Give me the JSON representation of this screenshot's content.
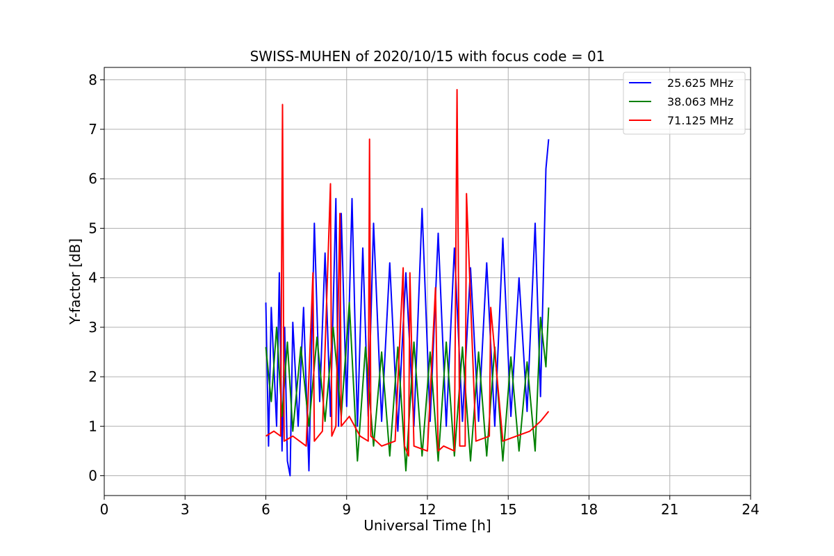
{
  "chart_data": {
    "type": "line",
    "title": "SWISS-MUHEN of 2020/10/15 with focus code = 01",
    "xlabel": "Universal Time [h]",
    "ylabel": "Y-factor [dB]",
    "xlim": [
      0,
      24
    ],
    "ylim": [
      -0.4,
      8.25
    ],
    "xticks": [
      0,
      3,
      6,
      9,
      12,
      15,
      18,
      21,
      24
    ],
    "yticks": [
      0,
      1,
      2,
      3,
      4,
      5,
      6,
      7,
      8
    ],
    "grid": true,
    "legend_position": "top-right",
    "series": [
      {
        "name": "25.625 MHz",
        "color": "#0000ff",
        "x": [
          6.0,
          6.1,
          6.2,
          6.4,
          6.5,
          6.6,
          6.7,
          6.8,
          6.9,
          7.0,
          7.2,
          7.4,
          7.6,
          7.8,
          8.0,
          8.2,
          8.4,
          8.6,
          8.7,
          8.8,
          9.0,
          9.2,
          9.4,
          9.6,
          9.8,
          10.0,
          10.3,
          10.6,
          10.9,
          11.2,
          11.5,
          11.8,
          12.1,
          12.4,
          12.7,
          13.0,
          13.3,
          13.6,
          13.9,
          14.2,
          14.5,
          14.8,
          15.1,
          15.4,
          15.7,
          16.0,
          16.2,
          16.4,
          16.5
        ],
        "y": [
          3.5,
          0.6,
          3.4,
          1.0,
          4.1,
          0.5,
          3.0,
          0.3,
          0.0,
          3.1,
          1.0,
          3.4,
          0.1,
          5.1,
          1.5,
          4.5,
          1.2,
          5.6,
          1.0,
          5.3,
          1.4,
          5.6,
          1.0,
          4.6,
          1.2,
          5.1,
          1.1,
          4.3,
          0.9,
          4.1,
          1.0,
          5.4,
          1.1,
          4.9,
          1.0,
          4.6,
          1.1,
          4.2,
          1.1,
          4.3,
          1.0,
          4.8,
          1.2,
          4.0,
          1.3,
          5.1,
          1.6,
          6.2,
          6.8
        ]
      },
      {
        "name": "38.063 MHz",
        "color": "#008000",
        "x": [
          6.0,
          6.2,
          6.4,
          6.6,
          6.8,
          7.0,
          7.3,
          7.6,
          7.9,
          8.2,
          8.5,
          8.8,
          9.1,
          9.4,
          9.7,
          10.0,
          10.3,
          10.6,
          10.9,
          11.2,
          11.5,
          11.8,
          12.1,
          12.4,
          12.7,
          13.0,
          13.3,
          13.6,
          13.9,
          14.2,
          14.5,
          14.8,
          15.1,
          15.4,
          15.7,
          16.0,
          16.2,
          16.4,
          16.5
        ],
        "y": [
          2.6,
          1.5,
          3.0,
          1.2,
          2.7,
          0.9,
          2.6,
          1.0,
          2.8,
          1.1,
          3.0,
          1.2,
          3.5,
          0.3,
          2.6,
          0.6,
          2.5,
          0.4,
          2.6,
          0.1,
          2.7,
          0.4,
          2.5,
          0.3,
          2.7,
          0.4,
          2.6,
          0.3,
          2.5,
          0.4,
          2.6,
          0.3,
          2.4,
          0.5,
          2.3,
          0.5,
          3.2,
          2.2,
          3.4
        ]
      },
      {
        "name": "71.125 MHz",
        "color": "#ff0000",
        "x": [
          6.0,
          6.3,
          6.55,
          6.62,
          6.68,
          7.0,
          7.5,
          7.75,
          7.8,
          8.1,
          8.4,
          8.45,
          8.6,
          8.75,
          8.8,
          9.1,
          9.5,
          9.8,
          9.85,
          9.9,
          10.3,
          10.8,
          11.1,
          11.15,
          11.3,
          11.35,
          11.5,
          12.0,
          12.3,
          12.4,
          12.6,
          13.0,
          13.1,
          13.2,
          13.4,
          13.45,
          13.8,
          14.3,
          14.35,
          14.8,
          15.3,
          15.8,
          16.2,
          16.5
        ],
        "y": [
          0.8,
          0.9,
          0.8,
          7.5,
          0.7,
          0.8,
          0.6,
          4.1,
          0.7,
          0.9,
          5.9,
          0.8,
          1.0,
          5.3,
          1.0,
          1.2,
          0.8,
          0.7,
          6.8,
          0.8,
          0.6,
          0.7,
          4.2,
          0.6,
          0.4,
          4.1,
          0.6,
          0.5,
          3.8,
          0.5,
          0.6,
          0.5,
          7.8,
          0.6,
          0.6,
          5.7,
          0.7,
          0.8,
          3.4,
          0.7,
          0.8,
          0.9,
          1.1,
          1.3
        ]
      }
    ]
  }
}
